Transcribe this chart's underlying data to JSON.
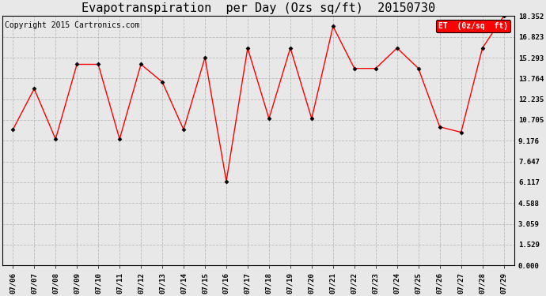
{
  "title": "Evapotranspiration  per Day (Ozs sq/ft)  20150730",
  "copyright": "Copyright 2015 Cartronics.com",
  "legend_label": "ET  (0z/sq  ft)",
  "x_labels": [
    "07/06",
    "07/07",
    "07/08",
    "07/09",
    "07/10",
    "07/11",
    "07/12",
    "07/13",
    "07/14",
    "07/15",
    "07/16",
    "07/17",
    "07/18",
    "07/19",
    "07/20",
    "07/21",
    "07/22",
    "07/23",
    "07/24",
    "07/25",
    "07/26",
    "07/27",
    "07/28",
    "07/29"
  ],
  "y_values": [
    10.0,
    13.0,
    9.3,
    14.8,
    14.8,
    9.3,
    14.8,
    13.5,
    10.0,
    15.3,
    6.2,
    16.0,
    10.8,
    16.0,
    10.8,
    17.6,
    14.5,
    14.5,
    16.0,
    14.5,
    10.2,
    9.8,
    16.0,
    18.35
  ],
  "y_min": 0.0,
  "y_max": 18.352,
  "y_ticks": [
    0.0,
    1.529,
    3.059,
    4.588,
    6.117,
    7.647,
    9.176,
    10.705,
    12.235,
    13.764,
    15.293,
    16.823,
    18.352
  ],
  "line_color": "red",
  "marker_color": "black",
  "bg_color": "#e8e8e8",
  "grid_color": "#bbbbbb",
  "title_fontsize": 11,
  "copyright_fontsize": 7,
  "tick_fontsize": 6.5,
  "legend_bg": "red",
  "legend_text_color": "white",
  "legend_fontsize": 7
}
